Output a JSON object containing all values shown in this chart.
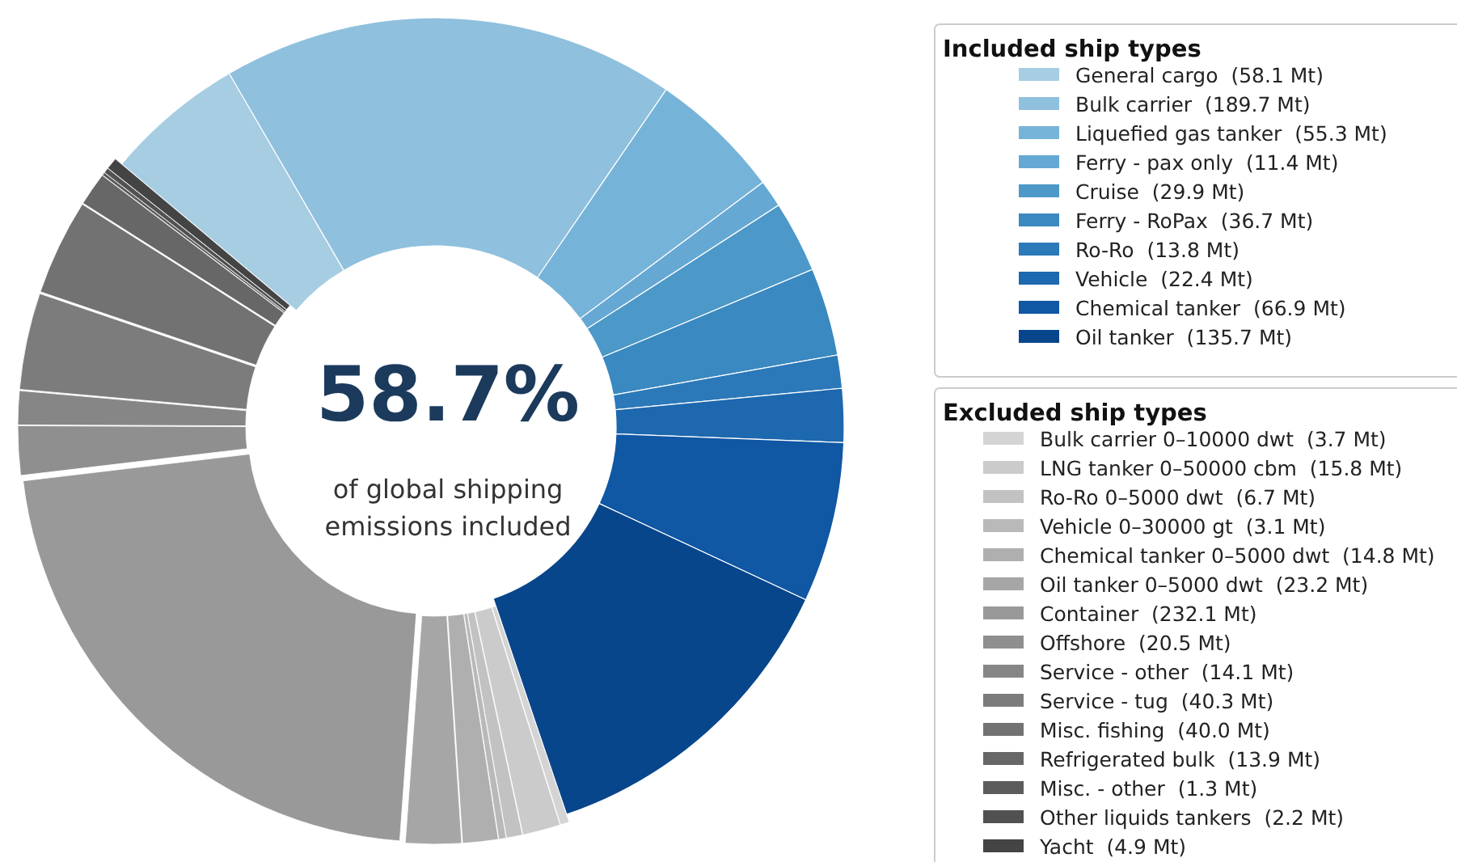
{
  "chart_data": {
    "type": "donut",
    "legend": "right",
    "legend_title": "Included ship types",
    "annotations": [
      "58.7%",
      "of global shipping\nemissions included",
      {
        "text": "Excluded ship types",
        "x": "Bulk carrier 0–10000 dwt  (3.7 Mt)"
      }
    ],
    "categories": [
      "General cargo  (58.1 Mt)",
      "Bulk carrier  (189.7 Mt)",
      "Liquefied gas tanker  (55.3 Mt)",
      "Ferry - pax only  (11.4 Mt)",
      "Cruise  (29.9 Mt)",
      "Ferry - RoPax  (36.7 Mt)",
      "Ro-Ro  (13.8 Mt)",
      "Vehicle  (22.4 Mt)",
      "Chemical tanker  (66.9 Mt)",
      "Oil tanker  (135.7 Mt)",
      "Bulk carrier 0–10000 dwt  (3.7 Mt)",
      "LNG tanker 0–50000 cbm  (15.8 Mt)",
      "Ro-Ro 0–5000 dwt  (6.7 Mt)",
      "Vehicle 0–30000 gt  (3.1 Mt)",
      "Chemical tanker 0–5000 dwt  (14.8 Mt)",
      "Oil tanker 0–5000 dwt  (23.2 Mt)",
      "Container  (232.1 Mt)",
      "Offshore  (20.5 Mt)",
      "Service - other  (14.1 Mt)",
      "Service - tug  (40.3 Mt)",
      "Misc. fishing  (40.0 Mt)",
      "Refrigerated bulk  (13.9 Mt)",
      "Misc. - other  (1.3 Mt)",
      "Other liquids tankers  (2.2 Mt)",
      "Yacht  (4.9 Mt)"
    ],
    "values": [
      58.1,
      189.7,
      55.3,
      11.4,
      29.9,
      36.7,
      13.8,
      22.4,
      66.9,
      135.7,
      3.7,
      15.8,
      6.7,
      3.1,
      14.8,
      23.2,
      232.1,
      20.5,
      14.1,
      40.3,
      40.0,
      13.9,
      1.3,
      2.2,
      4.9
    ],
    "colors": [
      "#a6cde2",
      "#8fc0dd",
      "#76b3d8",
      "#65a8d3",
      "#4c98c8",
      "#3a89c0",
      "#2b79b9",
      "#1d68ae",
      "#1057a4",
      "#08468c",
      "#d4d4d4",
      "#cbcbcb",
      "#c2c2c2",
      "#b9b9b9",
      "#afafaf",
      "#a6a6a6",
      "#999999",
      "#8f8f8f",
      "#868686",
      "#7c7c7c",
      "#727272",
      "#676767",
      "#5c5c5c",
      "#515151",
      "#444444"
    ]
  }
}
